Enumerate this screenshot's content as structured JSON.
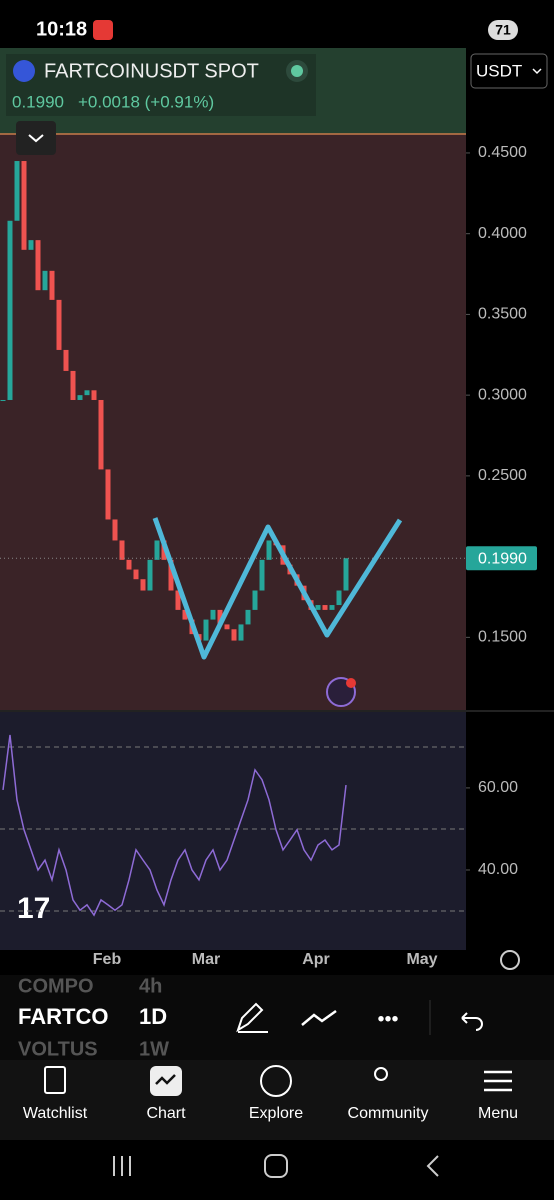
{
  "status_bar": {
    "time": "10:18",
    "battery": "71"
  },
  "header": {
    "symbol": "FARTCOINUSDT SPOT",
    "price": "0.1990",
    "change": "+0.0018 (+0.91%)",
    "currency": "USDT"
  },
  "chart_data": [
    {
      "type": "candlestick",
      "up_color": "#26a69a",
      "down_color": "#ef5350",
      "values": [
        0.297,
        0.408,
        0.445,
        0.39,
        0.396,
        0.365,
        0.377,
        0.359,
        0.328,
        0.315,
        0.297,
        0.3,
        0.303,
        0.297,
        0.254,
        0.223,
        0.21,
        0.198,
        0.192,
        0.186,
        0.179,
        0.198,
        0.21,
        0.198,
        0.179,
        0.167,
        0.161,
        0.152,
        0.148,
        0.161,
        0.167,
        0.158,
        0.155,
        0.148,
        0.158,
        0.167,
        0.179,
        0.198,
        0.21,
        0.207,
        0.195,
        0.189,
        0.182,
        0.173,
        0.167,
        0.17,
        0.167,
        0.17,
        0.179,
        0.199
      ],
      "ylim": [
        0.105,
        0.515
      ],
      "yticks": [
        {
          "value": 0.15,
          "label": "0.1500"
        },
        {
          "value": 0.25,
          "label": "0.2500"
        },
        {
          "value": 0.3,
          "label": "0.3000"
        },
        {
          "value": 0.35,
          "label": "0.3500"
        },
        {
          "value": 0.4,
          "label": "0.4000"
        },
        {
          "value": 0.45,
          "label": "0.4500"
        }
      ],
      "last_price_label": "0.1990"
    },
    {
      "type": "line",
      "color": "#8e6bd6",
      "values": [
        59.5,
        72.9,
        57.1,
        49.8,
        44.9,
        40.0,
        42.4,
        37.6,
        44.9,
        40.0,
        32.7,
        30.2,
        31.5,
        29.0,
        32.7,
        31.5,
        30.2,
        31.5,
        37.6,
        44.9,
        42.4,
        40.0,
        35.1,
        31.5,
        37.6,
        42.4,
        44.9,
        40.0,
        37.6,
        42.4,
        44.9,
        40.0,
        42.4,
        47.3,
        52.2,
        57.1,
        64.4,
        62.0,
        57.1,
        49.8,
        44.9,
        47.3,
        49.8,
        44.9,
        42.4,
        46.1,
        47.3,
        44.9,
        46.1,
        60.7
      ],
      "ylim": [
        20.5,
        78.5
      ],
      "yticks": [
        {
          "value": 40,
          "label": "40.00"
        },
        {
          "value": 60,
          "label": "60.00"
        }
      ]
    }
  ],
  "time_axis": {
    "labels": [
      "Feb",
      "Mar",
      "Apr",
      "May"
    ]
  },
  "watchlist": [
    {
      "symbol": "COMPO",
      "interval": "4h"
    },
    {
      "symbol": "FARTCO",
      "interval": "1D"
    },
    {
      "symbol": "VOLTUS",
      "interval": "1W"
    }
  ],
  "nav": [
    "Watchlist",
    "Chart",
    "Explore",
    "Community",
    "Menu"
  ]
}
